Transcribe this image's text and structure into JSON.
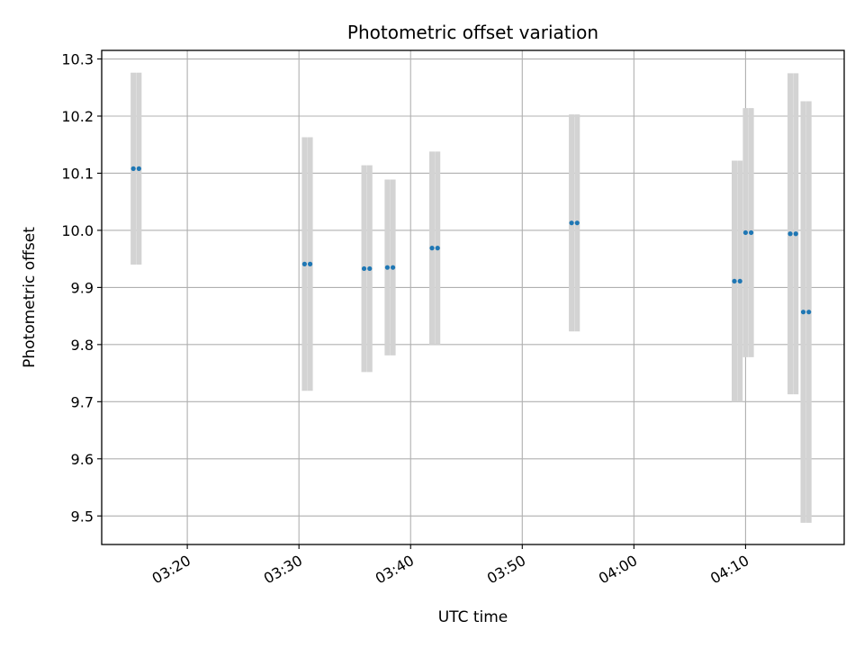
{
  "chart_data": {
    "type": "scatter",
    "title": "Photometric offset variation",
    "xlabel": "UTC time",
    "ylabel": "Photometric offset",
    "x_ticks": [
      "03:20",
      "03:30",
      "03:40",
      "03:50",
      "04:00",
      "04:10"
    ],
    "y_ticks": [
      "9.5",
      "9.6",
      "9.7",
      "9.8",
      "9.9",
      "10.0",
      "10.1",
      "10.2",
      "10.3"
    ],
    "xlim": [
      "03:12:20",
      "04:18:50"
    ],
    "ylim": [
      9.45,
      10.315
    ],
    "grid": true,
    "colors": {
      "points": "#1f77b4",
      "errorbars": "#d3d3d3",
      "grid": "#b0b0b0"
    },
    "series": [
      {
        "points": [
          {
            "x": "03:15:10",
            "y": 10.108,
            "err": 0.168
          },
          {
            "x": "03:15:40",
            "y": 10.108,
            "err": 0.168
          },
          {
            "x": "03:30:30",
            "y": 9.941,
            "err": 0.222
          },
          {
            "x": "03:31:00",
            "y": 9.941,
            "err": 0.222
          },
          {
            "x": "03:35:50",
            "y": 9.933,
            "err": 0.181
          },
          {
            "x": "03:36:20",
            "y": 9.933,
            "err": 0.181
          },
          {
            "x": "03:37:55",
            "y": 9.935,
            "err": 0.154
          },
          {
            "x": "03:38:25",
            "y": 9.935,
            "err": 0.154
          },
          {
            "x": "03:41:55",
            "y": 9.969,
            "err": 0.169
          },
          {
            "x": "03:42:25",
            "y": 9.969,
            "err": 0.169
          },
          {
            "x": "03:54:25",
            "y": 10.013,
            "err": 0.19
          },
          {
            "x": "03:54:55",
            "y": 10.013,
            "err": 0.19
          },
          {
            "x": "04:09:00",
            "y": 9.911,
            "err": 0.211
          },
          {
            "x": "04:09:30",
            "y": 9.911,
            "err": 0.211
          },
          {
            "x": "04:10:00",
            "y": 9.996,
            "err": 0.218
          },
          {
            "x": "04:10:30",
            "y": 9.996,
            "err": 0.218
          },
          {
            "x": "04:14:00",
            "y": 9.994,
            "err": 0.281
          },
          {
            "x": "04:14:30",
            "y": 9.994,
            "err": 0.281
          },
          {
            "x": "04:15:10",
            "y": 9.857,
            "err": 0.369
          },
          {
            "x": "04:15:40",
            "y": 9.857,
            "err": 0.369
          }
        ]
      }
    ]
  }
}
